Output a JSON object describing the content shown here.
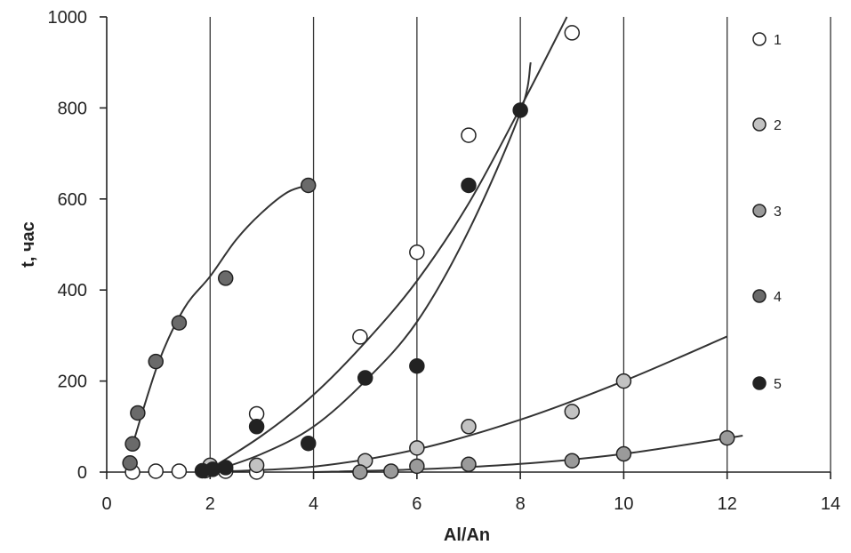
{
  "chart_data": {
    "type": "scatter",
    "xlabel": "Al/An",
    "ylabel": "t, час",
    "xlim": [
      0,
      14
    ],
    "ylim": [
      0,
      1000
    ],
    "x_ticks": [
      "0",
      "2",
      "4",
      "6",
      "8",
      "10",
      "12",
      "14"
    ],
    "y_ticks": [
      "0",
      "200",
      "400",
      "600",
      "800",
      "1000"
    ],
    "grid": "vertical",
    "legend_position": "right",
    "series": [
      {
        "name": "1",
        "color": "#ffffff",
        "points": [
          [
            0.5,
            0
          ],
          [
            0.95,
            2
          ],
          [
            1.4,
            2
          ],
          [
            1.9,
            3
          ],
          [
            2.3,
            2
          ],
          [
            2.9,
            128
          ],
          [
            2.9,
            0
          ],
          [
            4.9,
            297
          ],
          [
            6.0,
            483
          ],
          [
            7.0,
            740
          ],
          [
            9.0,
            965
          ]
        ],
        "fit": [
          [
            1.9,
            0
          ],
          [
            3,
            80
          ],
          [
            4,
            170
          ],
          [
            5,
            285
          ],
          [
            6,
            420
          ],
          [
            7,
            590
          ],
          [
            8,
            800
          ],
          [
            8.9,
            1000
          ]
        ]
      },
      {
        "name": "2",
        "color": "#c2c2c2",
        "points": [
          [
            2.0,
            15
          ],
          [
            2.9,
            15
          ],
          [
            5.0,
            25
          ],
          [
            6.0,
            53
          ],
          [
            7.0,
            100
          ],
          [
            9.0,
            133
          ],
          [
            10.0,
            200
          ]
        ],
        "fit": [
          [
            1.9,
            0
          ],
          [
            4,
            12
          ],
          [
            6,
            50
          ],
          [
            8,
            115
          ],
          [
            10,
            200
          ],
          [
            12.0,
            298
          ]
        ]
      },
      {
        "name": "3",
        "color": "#9a9a9a",
        "points": [
          [
            4.9,
            0
          ],
          [
            5.5,
            2
          ],
          [
            6.0,
            13
          ],
          [
            7.0,
            17
          ],
          [
            9.0,
            25
          ],
          [
            10.0,
            40
          ],
          [
            12.0,
            75
          ]
        ],
        "fit": [
          [
            4.0,
            0
          ],
          [
            6,
            6
          ],
          [
            8,
            18
          ],
          [
            10,
            40
          ],
          [
            12.3,
            80
          ]
        ]
      },
      {
        "name": "4",
        "color": "#6a6a6a",
        "points": [
          [
            0.45,
            20
          ],
          [
            0.5,
            62
          ],
          [
            0.6,
            130
          ],
          [
            0.95,
            243
          ],
          [
            1.4,
            328
          ],
          [
            2.3,
            426
          ],
          [
            3.9,
            630
          ]
        ],
        "fit": [
          [
            0.5,
            60
          ],
          [
            1.0,
            240
          ],
          [
            1.5,
            360
          ],
          [
            2.0,
            430
          ],
          [
            2.5,
            510
          ],
          [
            3.0,
            570
          ],
          [
            3.5,
            615
          ],
          [
            3.9,
            630
          ]
        ]
      },
      {
        "name": "5",
        "color": "#222222",
        "points": [
          [
            1.85,
            3
          ],
          [
            2.05,
            6
          ],
          [
            2.3,
            10
          ],
          [
            2.9,
            100
          ],
          [
            3.9,
            63
          ],
          [
            5.0,
            207
          ],
          [
            6.0,
            233
          ],
          [
            7.0,
            630
          ],
          [
            8.0,
            795
          ]
        ],
        "fit": [
          [
            2.0,
            0
          ],
          [
            3,
            40
          ],
          [
            4,
            100
          ],
          [
            5,
            200
          ],
          [
            6,
            330
          ],
          [
            7,
            530
          ],
          [
            8,
            790
          ],
          [
            8.2,
            900
          ]
        ]
      }
    ]
  }
}
